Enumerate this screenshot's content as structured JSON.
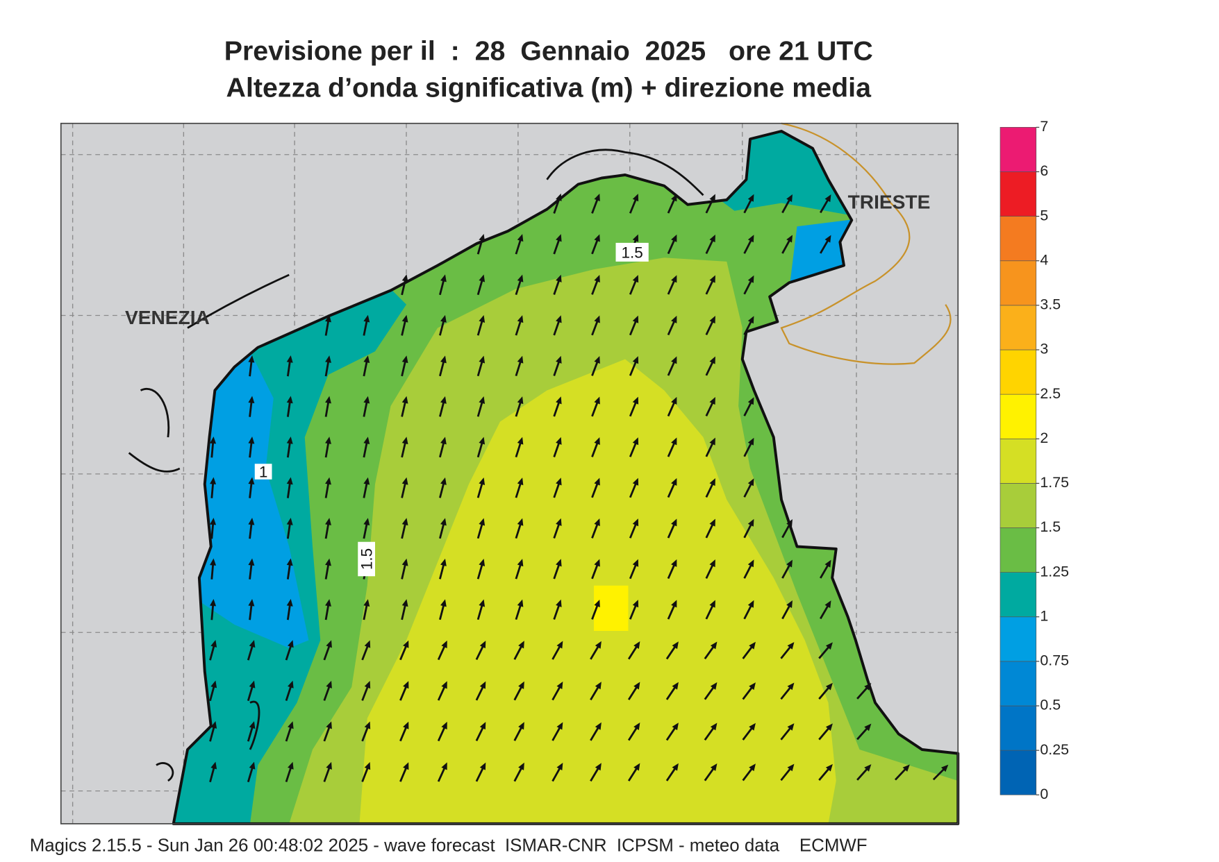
{
  "header": {
    "title_line1": "Previsione per il  :  28  Gennaio  2025   ore 21 UTC",
    "title_line2": "Altezza d’onda significativa (m) + direzione media"
  },
  "places": [
    "VENEZIA",
    "TRIESTE"
  ],
  "contour_labels": [
    1.5,
    1,
    1.5
  ],
  "colorbar": {
    "ticks": [
      0,
      0.25,
      0.5,
      0.75,
      1,
      1.25,
      1.5,
      1.75,
      2,
      2.5,
      3,
      3.5,
      4,
      5,
      6,
      7
    ],
    "colors": [
      "#0064b4",
      "#0075c6",
      "#0088d5",
      "#009fe3",
      "#00aaa0",
      "#6abd45",
      "#a8cd3a",
      "#d5df24",
      "#fff200",
      "#ffd400",
      "#fbb01a",
      "#f7941d",
      "#f47b20",
      "#ed1c24",
      "#ec1b72"
    ]
  },
  "footer": "Magics 2.15.5 - Sun Jan 26 00:48:02 2025 - wave forecast  ISMAR-CNR  ICPSM - meteo data    ECMWF"
}
